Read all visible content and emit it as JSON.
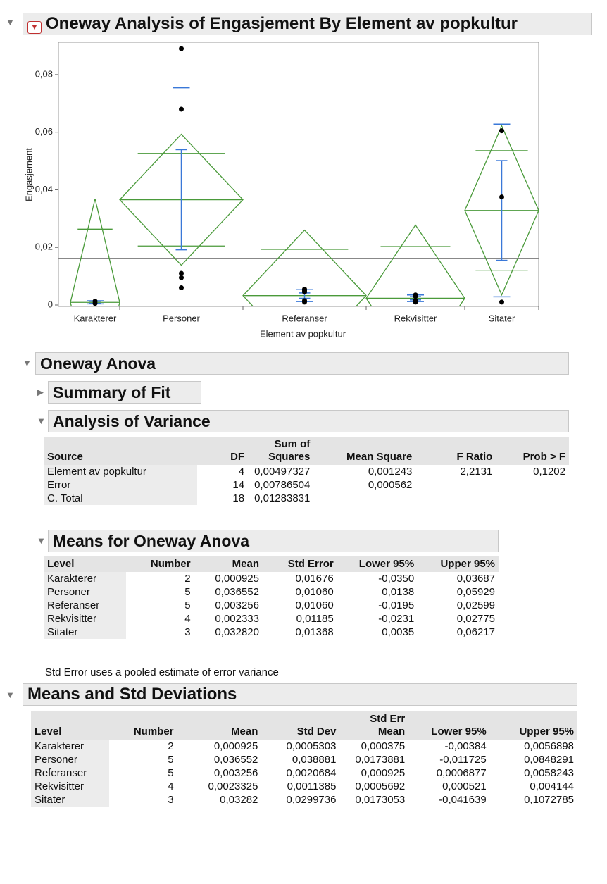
{
  "title": "Oneway Analysis of Engasjement By Element av popkultur",
  "chart_data": {
    "type": "oneway",
    "x_label": "Element av popkultur",
    "y_label": "Engasjement",
    "ylim": [
      0,
      0.09
    ],
    "yticks": [
      0,
      {
        "value": 0.02,
        "label": "0,02"
      },
      {
        "value": 0.04,
        "label": "0,04"
      },
      {
        "value": 0.06,
        "label": "0,06"
      },
      {
        "value": 0.08,
        "label": "0,08"
      }
    ],
    "grand_mean": 0.0162,
    "diamond_color": "#4a9a3a",
    "bar_color": "#3a78d8",
    "point_color": "#000000",
    "groups": [
      {
        "name": "Karakterer",
        "count": 2,
        "mean": 0.000925,
        "lower": -0.035,
        "upper": 0.03687,
        "std_dev": 0.0005303,
        "std_err": 0.000375,
        "points": [
          0.0013,
          0.00055
        ]
      },
      {
        "name": "Personer",
        "count": 5,
        "mean": 0.036552,
        "lower": 0.0138,
        "upper": 0.05929,
        "std_dev": 0.038881,
        "std_err": 0.0173881,
        "points": [
          0.089,
          0.068,
          0.011,
          0.0095,
          0.006
        ]
      },
      {
        "name": "Referanser",
        "count": 5,
        "mean": 0.003256,
        "lower": -0.0195,
        "upper": 0.02599,
        "std_dev": 0.0020684,
        "std_err": 0.000925,
        "points": [
          0.0055,
          0.005,
          0.0045,
          0.0015,
          0.001
        ]
      },
      {
        "name": "Rekvisitter",
        "count": 4,
        "mean": 0.002333,
        "lower": -0.0231,
        "upper": 0.02775,
        "std_dev": 0.0011385,
        "std_err": 0.0005692,
        "points": [
          0.0035,
          0.003,
          0.0015,
          0.001
        ]
      },
      {
        "name": "Sitater",
        "count": 3,
        "mean": 0.03282,
        "lower": 0.0035,
        "upper": 0.06217,
        "std_dev": 0.0299736,
        "std_err": 0.0173053,
        "points": [
          0.0605,
          0.0375,
          0.001
        ]
      }
    ]
  },
  "oneway_anova": {
    "title": "Oneway Anova",
    "summary_of_fit": {
      "title": "Summary of Fit"
    },
    "analysis_of_variance": {
      "title": "Analysis of Variance",
      "columns": [
        "Source",
        "DF",
        "Sum of Squares",
        "Mean Square",
        "F Ratio",
        "Prob > F"
      ],
      "rows": [
        [
          "Element av popkultur",
          "4",
          "0,00497327",
          "0,001243",
          "2,2131",
          "0,1202"
        ],
        [
          "Error",
          "14",
          "0,00786504",
          "0,000562",
          null,
          null
        ],
        [
          "C. Total",
          "18",
          "0,01283831",
          null,
          null,
          null
        ]
      ]
    },
    "means": {
      "title": "Means for Oneway Anova",
      "columns": [
        "Level",
        "Number",
        "Mean",
        "Std Error",
        "Lower 95%",
        "Upper 95%"
      ],
      "rows": [
        [
          "Karakterer",
          "2",
          "0,000925",
          "0,01676",
          "-0,0350",
          "0,03687"
        ],
        [
          "Personer",
          "5",
          "0,036552",
          "0,01060",
          "0,0138",
          "0,05929"
        ],
        [
          "Referanser",
          "5",
          "0,003256",
          "0,01060",
          "-0,0195",
          "0,02599"
        ],
        [
          "Rekvisitter",
          "4",
          "0,002333",
          "0,01185",
          "-0,0231",
          "0,02775"
        ],
        [
          "Sitater",
          "3",
          "0,032820",
          "0,01368",
          "0,0035",
          "0,06217"
        ]
      ],
      "note": "Std Error uses a pooled estimate of error variance"
    }
  },
  "means_std": {
    "title": "Means and Std Deviations",
    "columns": [
      "Level",
      "Number",
      "Mean",
      "Std Dev",
      "Std Err Mean",
      "Lower 95%",
      "Upper 95%"
    ],
    "rows": [
      [
        "Karakterer",
        "2",
        "0,000925",
        "0,0005303",
        "0,000375",
        "-0,00384",
        "0,0056898"
      ],
      [
        "Personer",
        "5",
        "0,036552",
        "0,038881",
        "0,0173881",
        "-0,011725",
        "0,0848291"
      ],
      [
        "Referanser",
        "5",
        "0,003256",
        "0,0020684",
        "0,000925",
        "0,0006877",
        "0,0058243"
      ],
      [
        "Rekvisitter",
        "4",
        "0,0023325",
        "0,0011385",
        "0,0005692",
        "0,000521",
        "0,004144"
      ],
      [
        "Sitater",
        "3",
        "0,03282",
        "0,0299736",
        "0,0173053",
        "-0,041639",
        "0,1072785"
      ]
    ]
  }
}
